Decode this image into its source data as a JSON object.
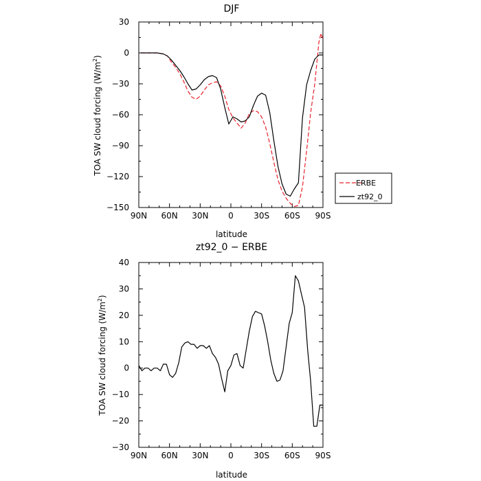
{
  "chart_data": [
    {
      "type": "line",
      "title": "DJF",
      "xlabel": "latitude",
      "ylabel": "TOA SW cloud forcing (W/m²)",
      "ylabel_main": "TOA SW cloud forcing (W/m",
      "ylabel_sup": "2",
      "ylabel_end": ")",
      "xlim": [
        90,
        -90
      ],
      "ylim": [
        -150,
        30
      ],
      "x_ticks": [
        90,
        60,
        30,
        0,
        -30,
        -60,
        -90
      ],
      "x_tick_labels": [
        "90N",
        "60N",
        "30N",
        "0",
        "30S",
        "60S",
        "90S"
      ],
      "y_ticks": [
        -150,
        -120,
        -90,
        -60,
        -30,
        0,
        30
      ],
      "y_tick_labels": [
        "−150",
        "−120",
        "−90",
        "−60",
        "−30",
        "0",
        "30"
      ],
      "legend": "right",
      "series": [
        {
          "name": "ERBE",
          "color": "#e8202a",
          "dash": "dashed",
          "x": [
            88,
            80,
            72,
            66,
            62,
            58,
            54,
            50,
            46,
            42,
            38,
            34,
            30,
            26,
            22,
            18,
            14,
            10,
            6,
            2,
            -2,
            -6,
            -10,
            -14,
            -18,
            -22,
            -26,
            -30,
            -34,
            -38,
            -42,
            -46,
            -50,
            -54,
            -58,
            -62,
            -66,
            -70,
            -74,
            -78,
            -82,
            -86,
            -88,
            -90
          ],
          "y": [
            0,
            0,
            0,
            -1,
            -3,
            -9,
            -14,
            -20,
            -28,
            -37,
            -43,
            -45,
            -42,
            -36,
            -31,
            -29,
            -28,
            -32,
            -42,
            -55,
            -63,
            -68,
            -73,
            -68,
            -59,
            -56,
            -57,
            -62,
            -72,
            -88,
            -106,
            -123,
            -134,
            -141,
            -146,
            -149,
            -148,
            -130,
            -95,
            -58,
            -30,
            10,
            19,
            13
          ]
        },
        {
          "name": "zt92_0",
          "color": "#000000",
          "dash": "solid",
          "x": [
            88,
            80,
            72,
            66,
            62,
            58,
            54,
            50,
            46,
            42,
            38,
            34,
            30,
            26,
            22,
            18,
            14,
            10,
            6,
            2,
            -2,
            -6,
            -10,
            -14,
            -18,
            -22,
            -26,
            -30,
            -34,
            -38,
            -42,
            -46,
            -50,
            -54,
            -58,
            -62,
            -66,
            -70,
            -74,
            -78,
            -82,
            -86,
            -90
          ],
          "y": [
            0,
            0,
            0,
            -1,
            -3,
            -7,
            -12,
            -17,
            -23,
            -30,
            -36,
            -35,
            -31,
            -26,
            -23,
            -22,
            -24,
            -35,
            -53,
            -69,
            -62,
            -64,
            -67,
            -66,
            -62,
            -51,
            -42,
            -39,
            -41,
            -58,
            -85,
            -110,
            -127,
            -137,
            -139,
            -132,
            -126,
            -63,
            -31,
            -17,
            -6,
            -2,
            -2
          ]
        }
      ]
    },
    {
      "type": "line",
      "title": "zt92_0 − ERBE",
      "xlabel": "latitude",
      "ylabel": "TOA SW cloud forcing (W/m²)",
      "ylabel_main": "TOA SW cloud forcing (W/m",
      "ylabel_sup": "2",
      "ylabel_end": ")",
      "xlim": [
        90,
        -90
      ],
      "ylim": [
        -30,
        40
      ],
      "x_ticks": [
        90,
        60,
        30,
        0,
        -30,
        -60,
        -90
      ],
      "x_tick_labels": [
        "90N",
        "60N",
        "30N",
        "0",
        "30S",
        "60S",
        "90S"
      ],
      "y_ticks": [
        -30,
        -20,
        -10,
        0,
        10,
        20,
        30,
        40
      ],
      "y_tick_labels": [
        "−30",
        "−20",
        "−10",
        "0",
        "10",
        "20",
        "30",
        "40"
      ],
      "series": [
        {
          "color": "#000000",
          "dash": "solid",
          "x": [
            90,
            87,
            84,
            81,
            78,
            75,
            72,
            69,
            66,
            63,
            60,
            57,
            54,
            51,
            48,
            45,
            42,
            39,
            36,
            33,
            30,
            27,
            24,
            21,
            18,
            15,
            12,
            9,
            6,
            3,
            0,
            -3,
            -6,
            -9,
            -12,
            -15,
            -18,
            -21,
            -24,
            -27,
            -30,
            -33,
            -36,
            -39,
            -42,
            -45,
            -48,
            -51,
            -54,
            -57,
            -60,
            -63,
            -66,
            -69,
            -72,
            -75,
            -78,
            -81,
            -84,
            -87,
            -90
          ],
          "y": [
            1,
            -1,
            0,
            0,
            -1,
            0,
            0,
            -1,
            1.5,
            1.5,
            -2.5,
            -3.5,
            -2,
            2,
            8,
            9.5,
            10,
            9,
            9,
            7.5,
            8.5,
            8.5,
            7.5,
            8.5,
            5.5,
            4,
            1.5,
            -4,
            -9,
            -1,
            1,
            5,
            5.5,
            1,
            0,
            7,
            14,
            19.5,
            21.5,
            21,
            20.5,
            16,
            10,
            3,
            -2,
            -5,
            -4.5,
            -1,
            8,
            17,
            21,
            35,
            33,
            28,
            23,
            7,
            -5,
            -22,
            -22,
            -14,
            -14
          ]
        }
      ]
    }
  ]
}
